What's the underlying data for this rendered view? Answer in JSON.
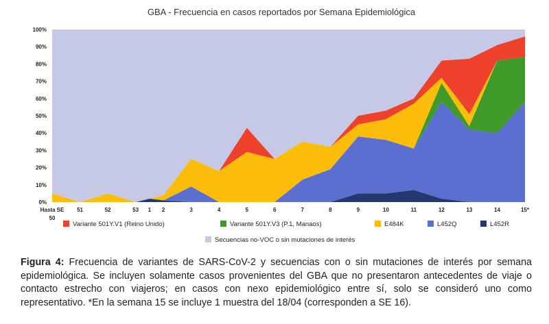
{
  "chart_data": {
    "type": "area",
    "stacked": true,
    "title": "GBA - Frecuencia en casos reportados por Semana Epidemiológica",
    "ylim": [
      0,
      100
    ],
    "yticks": [
      0,
      10,
      20,
      30,
      40,
      50,
      60,
      70,
      80,
      90,
      100
    ],
    "ytick_suffix": "%",
    "xlabel": "",
    "ylabel": "",
    "categories": [
      {
        "line1": "Hasta SE",
        "line2": "50"
      },
      {
        "line1": "51",
        "line2": ""
      },
      {
        "line1": "52",
        "line2": ""
      },
      {
        "line1": "53",
        "line2": ""
      },
      {
        "line1": "1",
        "line2": ""
      },
      {
        "line1": "2",
        "line2": ""
      },
      {
        "line1": "3",
        "line2": ""
      },
      {
        "line1": "4",
        "line2": ""
      },
      {
        "line1": "5",
        "line2": ""
      },
      {
        "line1": "6",
        "line2": ""
      },
      {
        "line1": "7",
        "line2": ""
      },
      {
        "line1": "8",
        "line2": ""
      },
      {
        "line1": "9",
        "line2": ""
      },
      {
        "line1": "10",
        "line2": ""
      },
      {
        "line1": "11",
        "line2": ""
      },
      {
        "line1": "12",
        "line2": ""
      },
      {
        "line1": "13",
        "line2": ""
      },
      {
        "line1": "14",
        "line2": ""
      },
      {
        "line1": "15*",
        "line2": ""
      }
    ],
    "x_positions": [
      0,
      1,
      2,
      3,
      3.5,
      4,
      5,
      6,
      7,
      8,
      9,
      10,
      11,
      12,
      13,
      14,
      15,
      16,
      17
    ],
    "x_domain": [
      0,
      17
    ],
    "series": [
      {
        "name": "L452R",
        "color": "#24386f",
        "values": [
          0,
          0,
          0,
          0,
          2,
          1,
          0,
          0,
          0,
          0,
          0,
          0,
          5,
          5,
          7,
          2,
          0,
          0,
          0
        ]
      },
      {
        "name": "L452Q",
        "color": "#5a6fcf",
        "values": [
          0,
          0,
          0,
          0,
          0,
          0,
          9,
          0,
          0,
          0,
          13,
          19,
          33,
          31,
          24,
          56,
          42,
          40,
          58
        ]
      },
      {
        "name": "Variante 501Y.V3 (P.1, Manaos)",
        "color": "#3f9a2a",
        "values": [
          0,
          0,
          0,
          0,
          0,
          0,
          0,
          0,
          0,
          0,
          0,
          0,
          0,
          0,
          0,
          11,
          2,
          42,
          26
        ]
      },
      {
        "name": "E484K",
        "color": "#fbbd09",
        "values": [
          5,
          0,
          5,
          0,
          0,
          3,
          16,
          18,
          29,
          25,
          22,
          13,
          7,
          12,
          26,
          3,
          7,
          0,
          0
        ]
      },
      {
        "name": "Variante 501Y.V1 (Reino Unido)",
        "color": "#ee412b",
        "values": [
          0,
          0,
          0,
          0,
          0,
          0,
          0,
          0,
          14,
          0,
          0,
          0,
          5,
          5,
          3,
          10,
          32,
          9,
          12
        ]
      },
      {
        "name": "Secuencias no-VOC o sin mutaciones de interés",
        "color": "#c6c9e5",
        "values": [
          95,
          100,
          95,
          100,
          98,
          96,
          75,
          82,
          57,
          75,
          65,
          68,
          50,
          47,
          40,
          18,
          17,
          9,
          4
        ]
      }
    ],
    "legend": {
      "row1": [
        "Variante 501Y.V1 (Reino Unido)",
        "Variante 501Y.V3 (P.1, Manaos)",
        "E484K",
        "L452Q",
        "L452R"
      ],
      "row2": [
        "Secuencias no-VOC o sin mutaciones de interés"
      ],
      "placement": "bottom"
    },
    "grid": false
  },
  "caption": {
    "label": "Figura 4:",
    "text": " Frecuencia de variantes de SARS-CoV-2 y secuencias con o sin mutaciones de interés por semana epidemiológica. Se incluyen solamente casos provenientes del GBA que no presentaron antecedentes de viaje o contacto estrecho con viajeros; en casos con nexo epidemiológico entre sí, solo se consideró uno como representativo. *En la semana 15 se incluye 1 muestra del 18/04 (corresponden a SE 16)."
  }
}
